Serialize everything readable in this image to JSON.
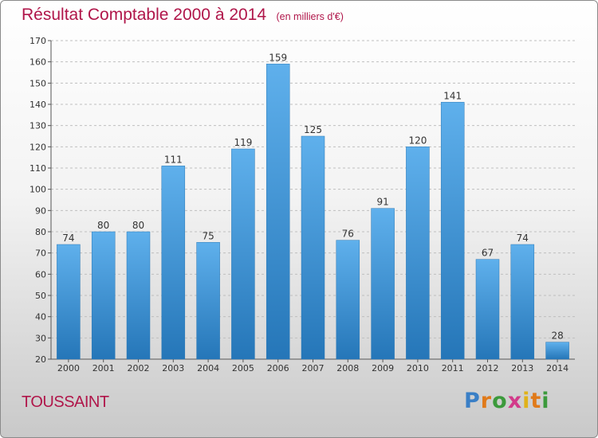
{
  "header": {
    "title": "Résultat Comptable 2000 à 2014",
    "subtitle": "(en milliers d'€)"
  },
  "location": "TOUSSAINT",
  "logo": {
    "letters": [
      "P",
      "r",
      "o",
      "x",
      "i",
      "t",
      "i"
    ]
  },
  "colors": {
    "title": "#b0164a",
    "bar_top": "#5fb0ec",
    "bar_bottom": "#2576b8",
    "grid": "#bfbfbf"
  },
  "chart_data": {
    "type": "bar",
    "title": "Résultat Comptable 2000 à 2014",
    "subtitle": "(en milliers d'€)",
    "categories": [
      "2000",
      "2001",
      "2002",
      "2003",
      "2004",
      "2005",
      "2006",
      "2007",
      "2008",
      "2009",
      "2010",
      "2011",
      "2012",
      "2013",
      "2014"
    ],
    "values": [
      74,
      80,
      80,
      111,
      75,
      119,
      159,
      125,
      76,
      91,
      120,
      141,
      67,
      74,
      28
    ],
    "ylim": [
      20,
      170
    ],
    "yticks": [
      20,
      30,
      40,
      50,
      60,
      70,
      80,
      90,
      100,
      110,
      120,
      130,
      140,
      150,
      160,
      170
    ],
    "grid": "horizontal",
    "data_labels": true
  }
}
